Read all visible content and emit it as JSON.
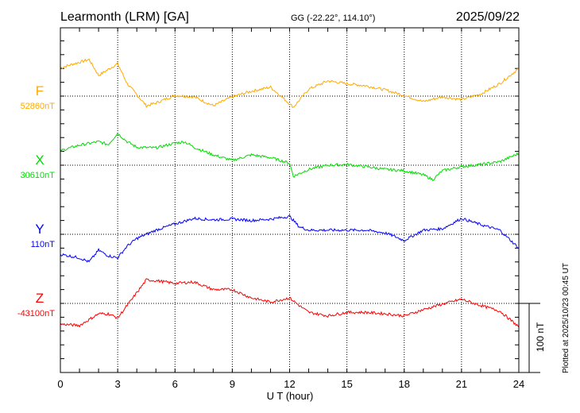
{
  "header": {
    "station": "Learmonth (LRM)  [GA]",
    "coords": "GG (-22.22°, 114.10°)",
    "date": "2025/09/22"
  },
  "footer": {
    "plotted": "Plotted at 2025/10/23 00:45 UT",
    "scale_label": "100 nT"
  },
  "chart_data": {
    "type": "line",
    "title": "Learmonth (LRM)  [GA]",
    "xlabel": "U T (hour)",
    "xlim": [
      0,
      24
    ],
    "xticks": [
      "0",
      "3",
      "6",
      "9",
      "12",
      "15",
      "18",
      "21",
      "24"
    ],
    "scale_nT": 100,
    "grid": true,
    "series": [
      {
        "name": "F",
        "baseline_label": "52860nT",
        "color": "#ffaa00",
        "t": [
          0,
          1.5,
          2,
          3,
          3.5,
          4.5,
          5,
          6,
          7,
          8,
          9,
          10,
          11,
          12.2,
          13,
          14,
          15,
          16,
          17,
          18,
          19,
          20,
          21,
          22,
          23,
          24
        ],
        "values": [
          41,
          53,
          30,
          47,
          18,
          -14,
          -10,
          1,
          -1,
          -14,
          -1,
          7,
          13,
          -16,
          10,
          22,
          18,
          15,
          9,
          1,
          -8,
          -1,
          -5,
          3,
          18,
          40
        ]
      },
      {
        "name": "X",
        "baseline_label": "30610nT",
        "color": "#00dd00",
        "t": [
          0,
          1,
          2,
          2.5,
          3,
          3.5,
          4,
          5,
          6,
          6.5,
          7,
          8,
          9,
          10,
          11,
          12,
          12.2,
          13,
          14,
          15,
          16,
          17,
          18,
          19,
          19.5,
          20,
          21,
          22,
          23,
          24
        ],
        "values": [
          21,
          29,
          34,
          30,
          46,
          34,
          26,
          25,
          32,
          34,
          26,
          15,
          7,
          15,
          11,
          3,
          -16,
          -6,
          0,
          1,
          -2,
          -6,
          -8,
          -14,
          -21,
          -8,
          -2,
          1,
          5,
          17
        ]
      },
      {
        "name": "Y",
        "baseline_label": "110nT",
        "color": "#0000ff",
        "t": [
          0,
          1,
          1.5,
          2,
          2.5,
          3,
          3.5,
          4,
          4.5,
          5,
          6,
          7,
          8,
          9,
          10,
          11,
          12,
          12.5,
          13,
          14,
          15,
          16,
          17,
          17.5,
          18,
          19,
          20,
          21,
          22,
          23,
          24
        ],
        "values": [
          -29,
          -34,
          -40,
          -23,
          -31,
          -34,
          -17,
          -6,
          0,
          6,
          15,
          23,
          21,
          22,
          20,
          22,
          26,
          11,
          6,
          6,
          6,
          6,
          2,
          -3,
          -9,
          6,
          8,
          23,
          14,
          6,
          -20
        ]
      },
      {
        "name": "Z",
        "baseline_label": "-43100nT",
        "color": "#ff0000",
        "t": [
          0,
          1,
          2,
          2.5,
          3,
          3.5,
          4.5,
          5,
          6,
          7,
          8,
          9,
          10,
          11,
          12,
          12.5,
          13,
          14,
          15,
          16,
          17,
          18,
          19,
          20,
          21,
          22,
          23,
          24
        ],
        "values": [
          -30,
          -32,
          -15,
          -15,
          -21,
          -3,
          34,
          33,
          29,
          31,
          20,
          20,
          8,
          2,
          8,
          -3,
          -13,
          -18,
          -13,
          -13,
          -15,
          -18,
          -9,
          -1,
          6,
          -3,
          -11,
          -34
        ]
      }
    ]
  }
}
